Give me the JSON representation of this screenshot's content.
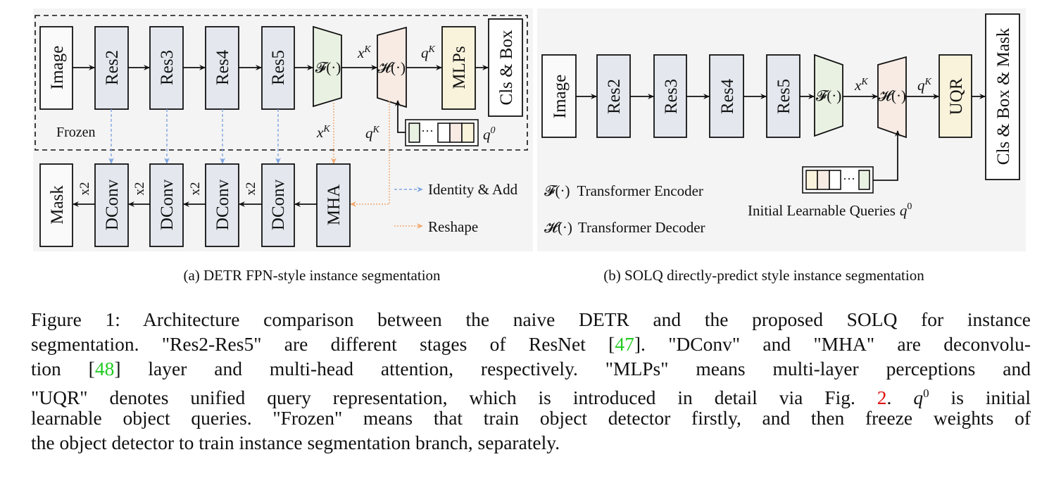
{
  "panel_a": {
    "blocks_top": [
      "Image",
      "Res2",
      "Res3",
      "Res4",
      "Res5",
      "MLPs",
      "Cls & Box"
    ],
    "encoder": "𝓕(·)",
    "decoder": "𝓗(·)",
    "xk": "x",
    "qk": "q",
    "sup_k": "K",
    "q0": "q",
    "sup_0": "0",
    "ellipsis": "···",
    "frozen": "Frozen",
    "blocks_bottom": [
      "Mask",
      "DConv",
      "DConv",
      "DConv",
      "DConv",
      "MHA"
    ],
    "x2": "x2",
    "legend_identity": "Identity & Add",
    "legend_reshape": "Reshape",
    "caption": "(a) DETR FPN-style instance segmentation"
  },
  "panel_b": {
    "blocks": [
      "Image",
      "Res2",
      "Res3",
      "Res4",
      "Res5",
      "UQR",
      "Cls & Box & Mask"
    ],
    "encoder": "𝓕(·)",
    "decoder": "𝓗(·)",
    "legend_encoder": "Transformer Encoder",
    "legend_decoder": "Transformer Decoder",
    "queries_label": "Initial Learnable Queries",
    "caption": "(b) SOLQ directly-predict style instance segmentation"
  },
  "colors": {
    "panel_bg": "#f4f4f4",
    "res_fill": "#e4e8ee",
    "encoder_fill": "#e9f1e3",
    "decoder_fill": "#f7ebe4",
    "mlp_fill": "#faf3dc",
    "identity_line": "#7fa5e0",
    "reshape_line": "#f0a870",
    "ref_link": "#22cc22",
    "fig_link": "#e01010"
  },
  "figure_caption": {
    "l1": "Figure 1: Architecture comparison between the naive DETR and the proposed SOLQ for instance",
    "l2a": "segmentation. \"Res2-Res5\" are different stages of ResNet [",
    "ref47": "47",
    "l2b": "]. \"DConv\" and \"MHA\" are deconvolu-",
    "l3a": "tion [",
    "ref48": "48",
    "l3b": "] layer and multi-head attention, respectively. \"MLPs\" means multi-layer perceptions and",
    "l4a": "\"UQR\" denotes unified query representation, which is introduced in detail via Fig. ",
    "fig2": "2",
    "l4b": ". ",
    "q": "q",
    "sup0": "0",
    "l4c": " is initial",
    "l5": "learnable object queries. \"Frozen\" means that train object detector firstly, and then freeze weights of",
    "l6": "the object detector to train instance segmentation branch, separately."
  }
}
